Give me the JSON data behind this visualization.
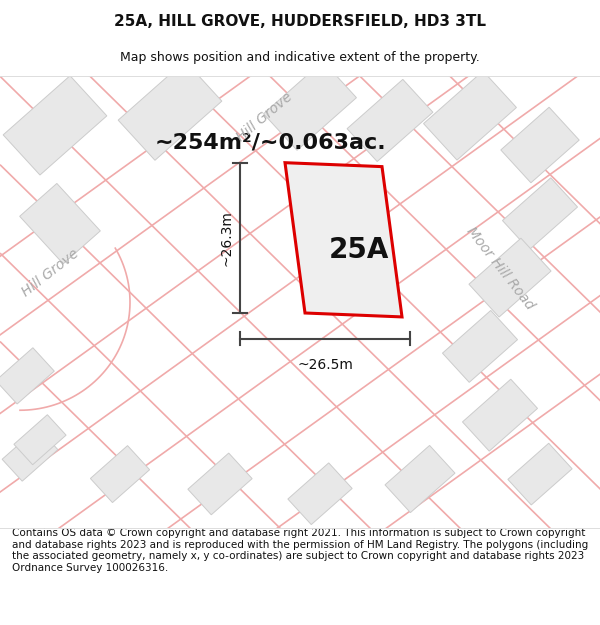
{
  "title": "25A, HILL GROVE, HUDDERSFIELD, HD3 3TL",
  "subtitle": "Map shows position and indicative extent of the property.",
  "area_text": "~254m²/~0.063ac.",
  "label_25A": "25A",
  "dim_vertical": "~26.3m",
  "dim_horizontal": "~26.5m",
  "street_label_left": "Hill Grove",
  "street_label_top": "Hill Grove",
  "street_label_right": "Moor Hill Road",
  "footer": "Contains OS data © Crown copyright and database right 2021. This information is subject to Crown copyright and database rights 2023 and is reproduced with the permission of HM Land Registry. The polygons (including the associated geometry, namely x, y co-ordinates) are subject to Crown copyright and database rights 2023 Ordnance Survey 100026316.",
  "bg_color": "#ffffff",
  "map_bg": "#ffffff",
  "plot_color": "#dd0000",
  "plot_fill": "#efefef",
  "road_color": "#f0aaaa",
  "building_color": "#e8e8e8",
  "building_edge": "#cccccc",
  "dim_line_color": "#444444",
  "title_color": "#111111",
  "footer_color": "#111111",
  "title_fontsize": 11,
  "subtitle_fontsize": 9,
  "area_fontsize": 16,
  "label_fontsize": 20,
  "dim_fontsize": 10,
  "street_fontsize": 10,
  "footer_fontsize": 7.5
}
